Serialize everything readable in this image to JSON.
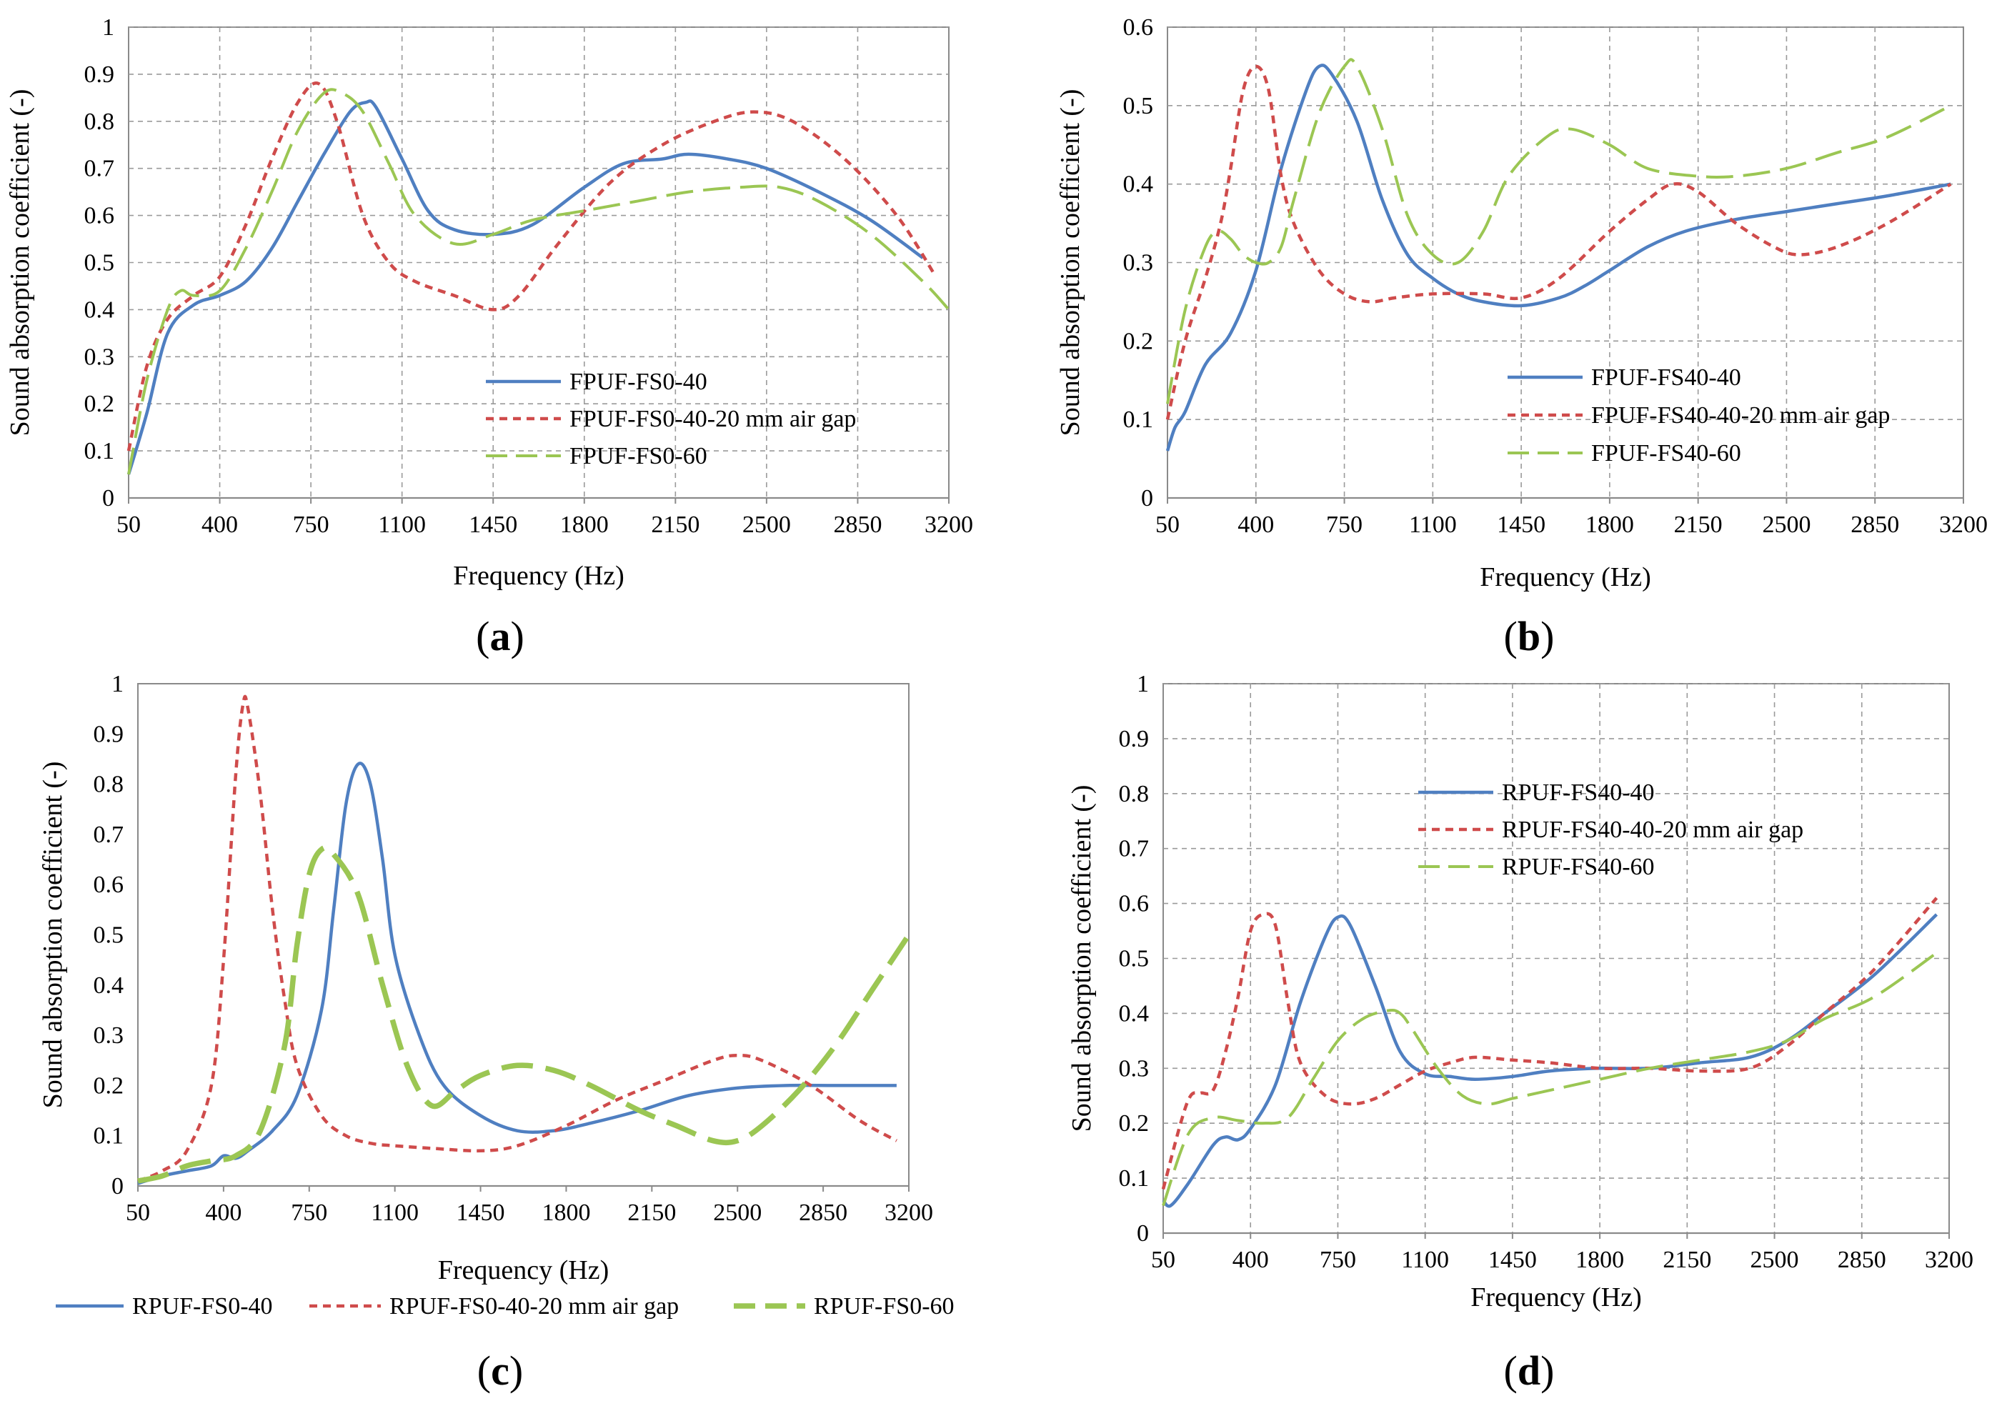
{
  "colors": {
    "blue": "#4f7fc1",
    "red": "#cf4b4b",
    "green": "#9bc653",
    "grid": "#9a9a9a",
    "axis": "#8a8a8a"
  },
  "chart_data": [
    {
      "id": "a",
      "type": "line",
      "caption_letter": "a",
      "xlabel": "Frequency (Hz)",
      "ylabel": "Sound absorption coefficient (-)",
      "xlim": [
        50,
        3200
      ],
      "ylim": [
        0,
        1
      ],
      "xticks": [
        50,
        400,
        750,
        1100,
        1450,
        1800,
        2150,
        2500,
        2850,
        3200
      ],
      "yticks": [
        0,
        0.1,
        0.2,
        0.3,
        0.4,
        0.5,
        0.6,
        0.7,
        0.8,
        0.9,
        1
      ],
      "ytick_labels": [
        "0",
        "0.1",
        "0.2",
        "0.3",
        "0.4",
        "0.5",
        "0.6",
        "0.7",
        "0.8",
        "0.9",
        "1"
      ],
      "grid": true,
      "legend_position": "center-right",
      "series": [
        {
          "name": "FPUF-FS0-40",
          "color": "blue",
          "dash": "solid",
          "x": [
            50,
            120,
            200,
            300,
            400,
            500,
            600,
            700,
            800,
            900,
            960,
            1000,
            1100,
            1200,
            1300,
            1450,
            1600,
            1800,
            1950,
            2100,
            2200,
            2350,
            2500,
            2700,
            2900,
            3100
          ],
          "y": [
            0.05,
            0.18,
            0.35,
            0.41,
            0.43,
            0.46,
            0.53,
            0.63,
            0.73,
            0.82,
            0.84,
            0.83,
            0.72,
            0.61,
            0.57,
            0.56,
            0.58,
            0.66,
            0.71,
            0.72,
            0.73,
            0.72,
            0.7,
            0.65,
            0.59,
            0.51
          ]
        },
        {
          "name": "FPUF-FS0-40-20 mm air gap",
          "color": "red",
          "dash": "short",
          "x": [
            50,
            120,
            200,
            300,
            400,
            500,
            600,
            700,
            780,
            850,
            950,
            1050,
            1150,
            1300,
            1450,
            1550,
            1700,
            1900,
            2100,
            2300,
            2450,
            2600,
            2800,
            3000,
            3150
          ],
          "y": [
            0.1,
            0.28,
            0.38,
            0.43,
            0.47,
            0.58,
            0.72,
            0.84,
            0.88,
            0.8,
            0.6,
            0.5,
            0.46,
            0.43,
            0.4,
            0.43,
            0.54,
            0.67,
            0.75,
            0.8,
            0.82,
            0.8,
            0.72,
            0.6,
            0.47
          ]
        },
        {
          "name": "FPUF-FS0-60",
          "color": "green",
          "dash": "long",
          "x": [
            50,
            120,
            200,
            250,
            300,
            400,
            500,
            600,
            700,
            800,
            870,
            950,
            1050,
            1150,
            1300,
            1450,
            1600,
            1800,
            2000,
            2200,
            2400,
            2550,
            2700,
            2900,
            3100,
            3200
          ],
          "y": [
            0.05,
            0.25,
            0.4,
            0.44,
            0.43,
            0.44,
            0.53,
            0.65,
            0.78,
            0.86,
            0.86,
            0.82,
            0.71,
            0.6,
            0.54,
            0.56,
            0.59,
            0.61,
            0.63,
            0.65,
            0.66,
            0.66,
            0.63,
            0.56,
            0.46,
            0.4
          ]
        }
      ]
    },
    {
      "id": "b",
      "type": "line",
      "caption_letter": "b",
      "xlabel": "Frequency (Hz)",
      "ylabel": "Sound absorption coefficient (-)",
      "xlim": [
        50,
        3200
      ],
      "ylim": [
        0,
        0.6
      ],
      "xticks": [
        50,
        400,
        750,
        1100,
        1450,
        1800,
        2150,
        2500,
        2850,
        3200
      ],
      "yticks": [
        0,
        0.1,
        0.2,
        0.3,
        0.4,
        0.5,
        0.6
      ],
      "ytick_labels": [
        "0",
        "0.1",
        "0.2",
        "0.3",
        "0.4",
        "0.5",
        "0.6"
      ],
      "grid": true,
      "legend_position": "bottom-center",
      "series": [
        {
          "name": "FPUF-FS40-40",
          "color": "blue",
          "dash": "solid",
          "x": [
            50,
            80,
            120,
            200,
            300,
            400,
            500,
            600,
            650,
            700,
            800,
            900,
            1000,
            1100,
            1200,
            1300,
            1450,
            1600,
            1700,
            1800,
            1950,
            2100,
            2300,
            2500,
            2700,
            2900,
            3150
          ],
          "y": [
            0.06,
            0.09,
            0.11,
            0.17,
            0.21,
            0.29,
            0.42,
            0.52,
            0.55,
            0.54,
            0.48,
            0.38,
            0.31,
            0.28,
            0.26,
            0.25,
            0.245,
            0.255,
            0.27,
            0.29,
            0.32,
            0.34,
            0.355,
            0.365,
            0.375,
            0.385,
            0.4
          ]
        },
        {
          "name": "FPUF-FS40-40-20 mm air gap",
          "color": "red",
          "dash": "short",
          "x": [
            50,
            120,
            200,
            260,
            300,
            350,
            400,
            450,
            500,
            550,
            650,
            750,
            850,
            950,
            1100,
            1300,
            1450,
            1600,
            1800,
            1950,
            2050,
            2150,
            2300,
            2450,
            2550,
            2700,
            2900,
            3150
          ],
          "y": [
            0.1,
            0.2,
            0.28,
            0.35,
            0.42,
            0.52,
            0.55,
            0.52,
            0.41,
            0.35,
            0.29,
            0.26,
            0.25,
            0.255,
            0.26,
            0.26,
            0.255,
            0.28,
            0.34,
            0.38,
            0.4,
            0.39,
            0.35,
            0.32,
            0.31,
            0.32,
            0.35,
            0.4
          ]
        },
        {
          "name": "FPUF-FS40-60",
          "color": "green",
          "dash": "long",
          "x": [
            50,
            120,
            200,
            250,
            300,
            350,
            400,
            450,
            500,
            550,
            650,
            750,
            800,
            900,
            1000,
            1100,
            1200,
            1300,
            1400,
            1550,
            1650,
            1800,
            1950,
            2150,
            2300,
            2500,
            2700,
            2900,
            3150
          ],
          "y": [
            0.12,
            0.24,
            0.32,
            0.34,
            0.33,
            0.31,
            0.3,
            0.3,
            0.32,
            0.38,
            0.49,
            0.55,
            0.55,
            0.47,
            0.36,
            0.31,
            0.3,
            0.34,
            0.41,
            0.46,
            0.47,
            0.45,
            0.42,
            0.41,
            0.41,
            0.42,
            0.44,
            0.46,
            0.5
          ]
        }
      ]
    },
    {
      "id": "c",
      "type": "line",
      "caption_letter": "c",
      "xlabel": "Frequency (Hz)",
      "ylabel": "Sound absorption coefficient (-)",
      "xlim": [
        50,
        3200
      ],
      "ylim": [
        0,
        1
      ],
      "xticks": [
        50,
        400,
        750,
        1100,
        1450,
        1800,
        2150,
        2500,
        2850,
        3200
      ],
      "yticks": [
        0,
        0.1,
        0.2,
        0.3,
        0.4,
        0.5,
        0.6,
        0.7,
        0.8,
        0.9,
        1
      ],
      "ytick_labels": [
        "0",
        "0.1",
        "0.2",
        "0.3",
        "0.4",
        "0.5",
        "0.6",
        "0.7",
        "0.8",
        "0.9",
        "1"
      ],
      "grid": false,
      "legend_position": "bottom",
      "series": [
        {
          "name": "RPUF-FS0-40",
          "color": "blue",
          "dash": "solid",
          "x": [
            50,
            150,
            250,
            350,
            400,
            450,
            500,
            600,
            700,
            800,
            850,
            900,
            950,
            1000,
            1050,
            1100,
            1200,
            1300,
            1450,
            1600,
            1750,
            1900,
            2100,
            2300,
            2500,
            2700,
            2900,
            3150
          ],
          "y": [
            0.005,
            0.02,
            0.03,
            0.04,
            0.06,
            0.055,
            0.07,
            0.11,
            0.18,
            0.35,
            0.55,
            0.76,
            0.84,
            0.8,
            0.65,
            0.46,
            0.3,
            0.2,
            0.14,
            0.11,
            0.11,
            0.125,
            0.15,
            0.18,
            0.195,
            0.2,
            0.2,
            0.2
          ]
        },
        {
          "name": "RPUF-FS0-40-20 mm air gap",
          "color": "red",
          "dash": "short",
          "x": [
            50,
            150,
            250,
            350,
            400,
            450,
            480,
            500,
            550,
            600,
            650,
            700,
            800,
            900,
            1000,
            1100,
            1250,
            1450,
            1600,
            1800,
            2000,
            2200,
            2400,
            2500,
            2600,
            2800,
            3000,
            3150
          ],
          "y": [
            0.01,
            0.03,
            0.07,
            0.2,
            0.45,
            0.82,
            0.96,
            0.95,
            0.78,
            0.55,
            0.37,
            0.24,
            0.14,
            0.1,
            0.085,
            0.08,
            0.075,
            0.07,
            0.08,
            0.12,
            0.17,
            0.21,
            0.25,
            0.26,
            0.25,
            0.2,
            0.13,
            0.09
          ]
        },
        {
          "name": "RPUF-FS0-60",
          "color": "green",
          "dash": "longthick",
          "x": [
            50,
            150,
            250,
            350,
            450,
            550,
            650,
            700,
            750,
            800,
            850,
            950,
            1050,
            1150,
            1250,
            1350,
            1450,
            1600,
            1750,
            1900,
            2100,
            2250,
            2400,
            2500,
            2600,
            2750,
            2900,
            3050,
            3200
          ],
          "y": [
            0.01,
            0.02,
            0.04,
            0.05,
            0.06,
            0.11,
            0.28,
            0.48,
            0.62,
            0.67,
            0.66,
            0.58,
            0.4,
            0.24,
            0.16,
            0.19,
            0.22,
            0.24,
            0.23,
            0.2,
            0.15,
            0.12,
            0.09,
            0.09,
            0.12,
            0.19,
            0.28,
            0.39,
            0.5
          ]
        }
      ]
    },
    {
      "id": "d",
      "type": "line",
      "caption_letter": "d",
      "xlabel": "Frequency (Hz)",
      "ylabel": "Sound absorption coefficient (-)",
      "xlim": [
        50,
        3200
      ],
      "ylim": [
        0,
        1
      ],
      "xticks": [
        50,
        400,
        750,
        1100,
        1450,
        1800,
        2150,
        2500,
        2850,
        3200
      ],
      "yticks": [
        0,
        0.1,
        0.2,
        0.3,
        0.4,
        0.5,
        0.6,
        0.7,
        0.8,
        0.9,
        1
      ],
      "ytick_labels": [
        "0",
        "0.1",
        "0.2",
        "0.3",
        "0.4",
        "0.5",
        "0.6",
        "0.7",
        "0.8",
        "0.9",
        "1"
      ],
      "grid": true,
      "legend_position": "top-left",
      "series": [
        {
          "name": "RPUF-FS40-40",
          "color": "blue",
          "dash": "solid",
          "x": [
            50,
            80,
            150,
            250,
            300,
            350,
            400,
            500,
            600,
            700,
            750,
            800,
            900,
            1000,
            1100,
            1200,
            1300,
            1450,
            1600,
            1800,
            2000,
            2200,
            2400,
            2550,
            2700,
            2900,
            3150
          ],
          "y": [
            0.06,
            0.05,
            0.09,
            0.16,
            0.175,
            0.17,
            0.19,
            0.27,
            0.42,
            0.54,
            0.575,
            0.56,
            0.45,
            0.33,
            0.29,
            0.285,
            0.28,
            0.285,
            0.295,
            0.3,
            0.3,
            0.31,
            0.32,
            0.35,
            0.4,
            0.47,
            0.58
          ]
        },
        {
          "name": "RPUF-FS40-40-20 mm air gap",
          "color": "red",
          "dash": "short",
          "x": [
            50,
            120,
            160,
            200,
            250,
            300,
            350,
            400,
            450,
            500,
            550,
            600,
            700,
            800,
            900,
            1000,
            1100,
            1200,
            1300,
            1450,
            1600,
            1800,
            2000,
            2200,
            2400,
            2550,
            2700,
            2900,
            3150
          ],
          "y": [
            0.08,
            0.2,
            0.25,
            0.255,
            0.26,
            0.33,
            0.43,
            0.55,
            0.58,
            0.56,
            0.42,
            0.31,
            0.25,
            0.235,
            0.245,
            0.27,
            0.295,
            0.31,
            0.32,
            0.315,
            0.31,
            0.3,
            0.3,
            0.295,
            0.3,
            0.34,
            0.4,
            0.48,
            0.61
          ]
        },
        {
          "name": "RPUF-FS40-60",
          "color": "green",
          "dash": "long",
          "x": [
            50,
            150,
            250,
            350,
            450,
            550,
            650,
            750,
            850,
            950,
            1000,
            1050,
            1150,
            1250,
            1350,
            1450,
            1600,
            1800,
            2000,
            2200,
            2400,
            2550,
            2700,
            2900,
            3150
          ],
          "y": [
            0.05,
            0.18,
            0.21,
            0.205,
            0.2,
            0.21,
            0.28,
            0.35,
            0.39,
            0.405,
            0.4,
            0.37,
            0.3,
            0.25,
            0.235,
            0.245,
            0.26,
            0.28,
            0.3,
            0.315,
            0.33,
            0.35,
            0.39,
            0.43,
            0.51
          ]
        }
      ]
    }
  ]
}
